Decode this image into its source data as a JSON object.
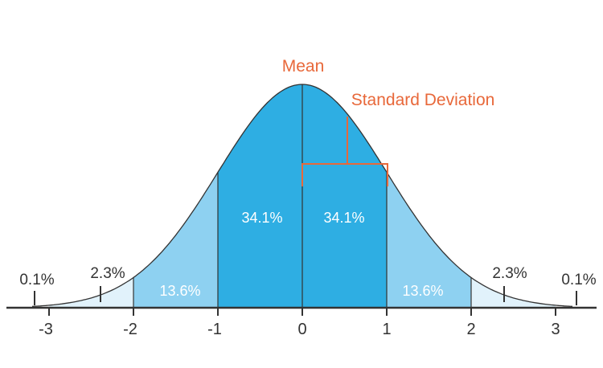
{
  "chart_data": {
    "type": "area",
    "title": "",
    "xlabel": "",
    "ylabel": "",
    "x_ticks": [
      "-3",
      "-2",
      "-1",
      "0",
      "1",
      "2",
      "3"
    ],
    "xlim": [
      -3.2,
      3.2
    ],
    "grid": false,
    "legend": "none",
    "regions": [
      {
        "from": -3,
        "to": -2,
        "percent": "2.3%"
      },
      {
        "from": -2,
        "to": -1,
        "percent": "13.6%"
      },
      {
        "from": -1,
        "to": 0,
        "percent": "34.1%"
      },
      {
        "from": 0,
        "to": 1,
        "percent": "34.1%"
      },
      {
        "from": 1,
        "to": 2,
        "percent": "13.6%"
      },
      {
        "from": 2,
        "to": 3,
        "percent": "2.3%"
      }
    ],
    "tail_labels": [
      {
        "x": -3,
        "percent": "0.1%"
      },
      {
        "x": 3,
        "percent": "0.1%"
      }
    ],
    "annotations": {
      "mean": "Mean",
      "std_dev": "Standard Deviation"
    },
    "colors": {
      "core": "#2eaee3",
      "middle": "#8ed1f1",
      "outer": "#e1f2fb",
      "annotation": "#e8683a",
      "divider": "#333333"
    }
  }
}
